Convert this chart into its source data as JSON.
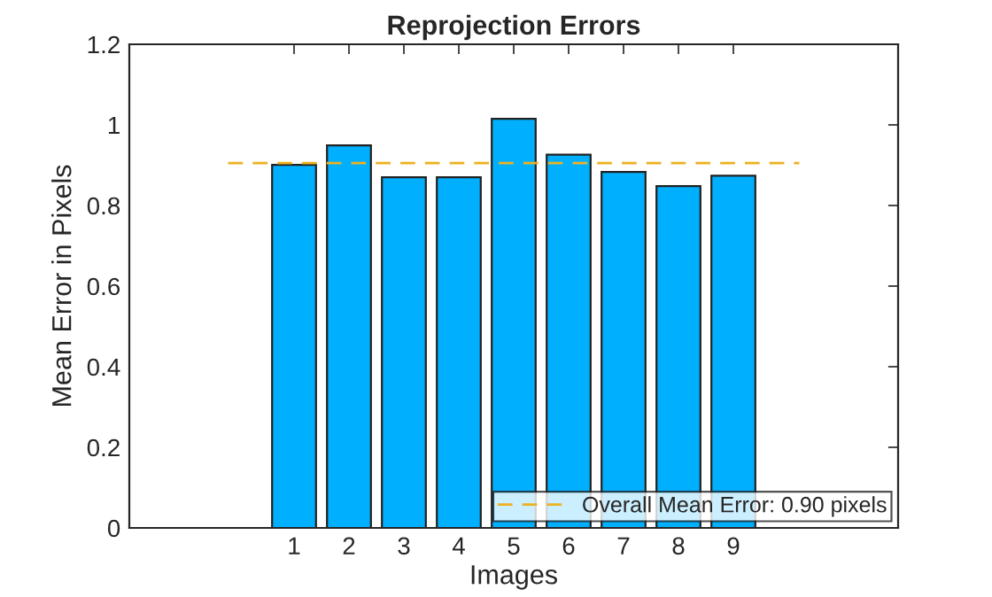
{
  "chart_data": {
    "type": "bar",
    "title": "Reprojection Errors",
    "xlabel": "Images",
    "ylabel": "Mean Error in Pixels",
    "x": [
      1,
      2,
      3,
      4,
      5,
      6,
      7,
      8,
      9
    ],
    "series": [
      {
        "color": "#00b0ff",
        "values": [
          0.901,
          0.949,
          0.87,
          0.87,
          1.015,
          0.926,
          0.883,
          0.848,
          0.874
        ]
      },
      {
        "type": "line",
        "name": "Overall Mean Error: 0.90 pixels",
        "color": "#edb120",
        "line_style": "dashed",
        "x": [
          -0.2,
          10.2
        ],
        "values": [
          0.905,
          0.905
        ]
      }
    ],
    "xlim": [
      -2,
      12
    ],
    "xticks": [
      1,
      2,
      3,
      4,
      5,
      6,
      7,
      8,
      9
    ],
    "ylim": [
      0,
      1.2
    ],
    "yticks": [
      0,
      0.2,
      0.4,
      0.6,
      0.8,
      1,
      1.2
    ],
    "grid": false,
    "legend": "bottom right"
  }
}
